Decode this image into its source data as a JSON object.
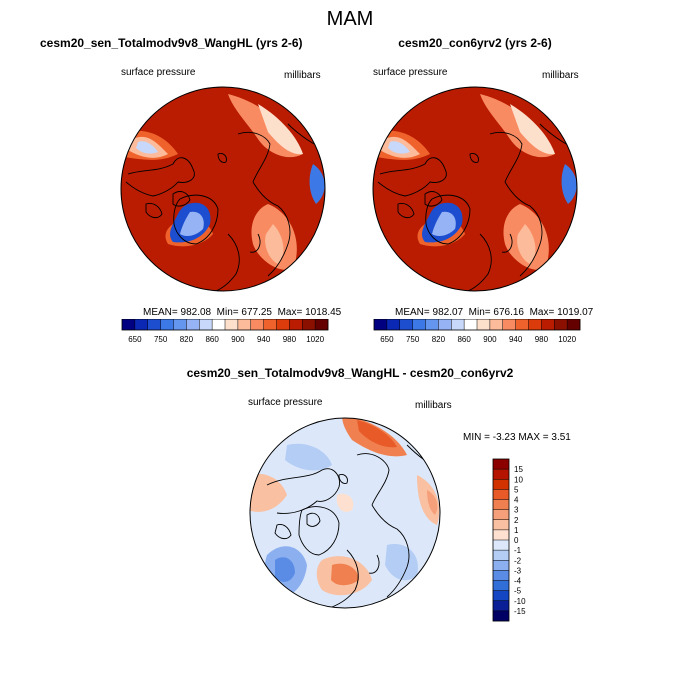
{
  "title": "MAM",
  "panels": [
    {
      "title": "cesm20_sen_Totalmodv9v8_WangHL (yrs 2-6)",
      "left_label": "surface pressure",
      "right_label": "millibars",
      "stats": {
        "mean_label": "MEAN=",
        "mean": "982.08",
        "min_label": "Min=",
        "min": "677.25",
        "max_label": "Max=",
        "max": "1018.45"
      }
    },
    {
      "title": "cesm20_con6yrv2 (yrs 2-6)",
      "left_label": "surface pressure",
      "right_label": "millibars",
      "stats": {
        "mean_label": "MEAN=",
        "mean": "982.07",
        "min_label": "Min=",
        "min": "676.16",
        "max_label": "Max=",
        "max": "1019.07"
      }
    },
    {
      "title": "cesm20_sen_Totalmodv9v8_WangHL - cesm20_con6yrv2",
      "left_label": "surface pressure",
      "right_label": "millibars",
      "stats": {
        "min_label": "MIN =",
        "min": "-3.23",
        "max_label": "MAX =",
        "max": "3.51"
      }
    }
  ],
  "chart_data": [
    {
      "type": "heatmap",
      "projection": "north-polar-stereographic",
      "title": "cesm20_sen_Totalmodv9v8_WangHL (yrs 2-6)",
      "variable": "surface pressure",
      "units": "millibars",
      "mean": 982.08,
      "min": 677.25,
      "max": 1018.45,
      "colorbar": {
        "orientation": "horizontal",
        "levels": [
          650,
          700,
          750,
          800,
          820,
          840,
          860,
          880,
          900,
          920,
          940,
          960,
          980,
          1000,
          1020
        ],
        "tick_labels": [
          "650",
          "750",
          "820",
          "860",
          "900",
          "940",
          "980",
          "1020"
        ],
        "colors": [
          "#000080",
          "#0a28b4",
          "#1e4ed0",
          "#3c78e6",
          "#6496f0",
          "#96b4f5",
          "#c8d8fa",
          "#ffffff",
          "#fde0cc",
          "#fcbb9a",
          "#f98b62",
          "#f0622c",
          "#dc3c0c",
          "#b91c00",
          "#8c1000",
          "#640000"
        ]
      }
    },
    {
      "type": "heatmap",
      "projection": "north-polar-stereographic",
      "title": "cesm20_con6yrv2 (yrs 2-6)",
      "variable": "surface pressure",
      "units": "millibars",
      "mean": 982.07,
      "min": 676.16,
      "max": 1019.07,
      "colorbar": {
        "orientation": "horizontal",
        "levels": [
          650,
          700,
          750,
          800,
          820,
          840,
          860,
          880,
          900,
          920,
          940,
          960,
          980,
          1000,
          1020
        ],
        "tick_labels": [
          "650",
          "750",
          "820",
          "860",
          "900",
          "940",
          "980",
          "1020"
        ],
        "colors": [
          "#000080",
          "#0a28b4",
          "#1e4ed0",
          "#3c78e6",
          "#6496f0",
          "#96b4f5",
          "#c8d8fa",
          "#ffffff",
          "#fde0cc",
          "#fcbb9a",
          "#f98b62",
          "#f0622c",
          "#dc3c0c",
          "#b91c00",
          "#8c1000",
          "#640000"
        ]
      }
    },
    {
      "type": "heatmap",
      "projection": "north-polar-stereographic",
      "title": "cesm20_sen_Totalmodv9v8_WangHL - cesm20_con6yrv2",
      "variable": "surface pressure",
      "units": "millibars",
      "min": -3.23,
      "max": 3.51,
      "colorbar": {
        "orientation": "vertical",
        "levels": [
          15,
          10,
          5,
          4,
          3,
          2,
          1,
          0,
          -1,
          -2,
          -3,
          -4,
          -5,
          -10,
          -15
        ],
        "tick_labels": [
          "15",
          "10",
          "5",
          "4",
          "3",
          "2",
          "1",
          "0",
          "-1",
          "-2",
          "-3",
          "-4",
          "-5",
          "-10",
          "-15"
        ],
        "colors": [
          "#8c0000",
          "#b41400",
          "#d23200",
          "#e85a28",
          "#f08050",
          "#f5a07a",
          "#f9c0a2",
          "#fde0d0",
          "#dce8fa",
          "#b4cdf5",
          "#8caff0",
          "#5a8ce6",
          "#326ed8",
          "#1446c3",
          "#0a1e96",
          "#000064"
        ]
      }
    }
  ]
}
